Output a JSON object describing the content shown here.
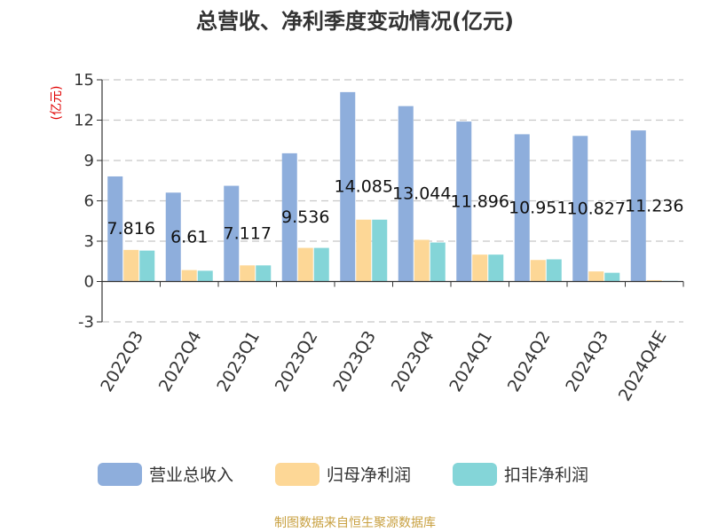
{
  "chart_data": {
    "type": "bar",
    "title": "总营收、净利季度变动情况(亿元)",
    "unit_label": "(亿元)",
    "categories": [
      "2022Q3",
      "2022Q4",
      "2023Q1",
      "2023Q2",
      "2023Q3",
      "2023Q4",
      "2024Q1",
      "2024Q2",
      "2024Q3",
      "2024Q4E"
    ],
    "ylim": [
      -3,
      15
    ],
    "yticks": [
      "15",
      "12",
      "9",
      "6",
      "3",
      "0",
      "-3"
    ],
    "grid": true,
    "legend_position": "bottom",
    "series": [
      {
        "name": "营业总收入",
        "color": "#8eaedc",
        "values": [
          7.816,
          6.61,
          7.117,
          9.536,
          14.085,
          13.044,
          11.896,
          10.951,
          10.827,
          11.236
        ]
      },
      {
        "name": "归母净利润",
        "color": "#fdd796",
        "values": [
          2.35,
          0.85,
          1.2,
          2.5,
          4.6,
          3.1,
          2.0,
          1.6,
          0.75,
          0.1
        ]
      },
      {
        "name": "扣非净利润",
        "color": "#84d5d8",
        "values": [
          2.3,
          0.8,
          1.2,
          2.5,
          4.6,
          2.9,
          2.0,
          1.65,
          0.65,
          0.05
        ]
      }
    ],
    "data_labels": [
      "7.816",
      "6.61",
      "7.117",
      "9.536",
      "14.085",
      "13.044",
      "11.896",
      "10.951",
      "10.827",
      "11.236"
    ]
  },
  "source": "制图数据来自恒生聚源数据库"
}
